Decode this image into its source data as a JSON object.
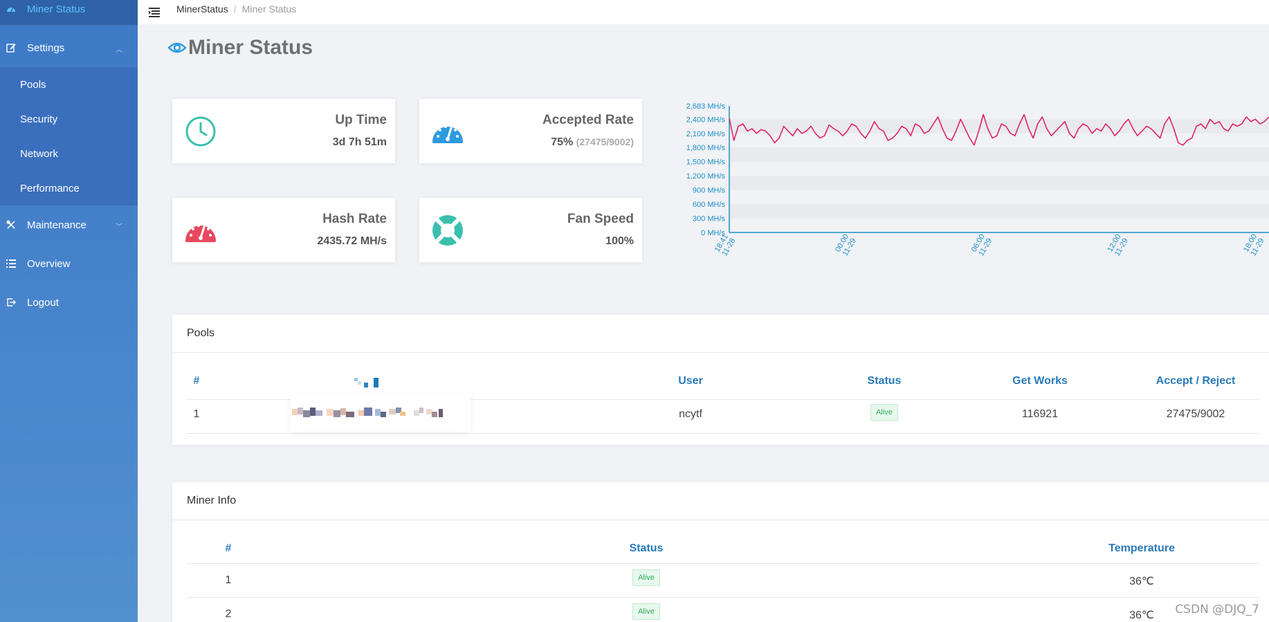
{
  "sidebar": {
    "items": [
      {
        "label": "Miner Status",
        "icon": "dashboard-icon"
      },
      {
        "label": "Settings",
        "icon": "edit-icon"
      },
      {
        "label": "Maintenance",
        "icon": "tools-icon"
      },
      {
        "label": "Overview",
        "icon": "list-icon"
      },
      {
        "label": "Logout",
        "icon": "logout-icon"
      }
    ],
    "settings_sub": [
      "Pools",
      "Security",
      "Network",
      "Performance"
    ]
  },
  "header": {
    "breadcrumb": [
      "MinerStatus",
      "Miner Status"
    ],
    "separator": "/"
  },
  "page": {
    "title": "Miner Status"
  },
  "stats": {
    "uptime": {
      "label": "Up Time",
      "value": "3d 7h 51m"
    },
    "accepted": {
      "label": "Accepted Rate",
      "value": "75%",
      "detail": "(27475/9002)"
    },
    "hashrate": {
      "label": "Hash Rate",
      "value": "2435.72 MH/s"
    },
    "fan": {
      "label": "Fan Speed",
      "value": "100%"
    }
  },
  "chart_data": {
    "type": "line",
    "title": "",
    "xlabel": "",
    "ylabel": "",
    "yticks": [
      "2,683 MH/s",
      "2,400 MH/s",
      "2,100 MH/s",
      "1,800 MH/s",
      "1,500 MH/s",
      "1,200 MH/s",
      "900 MH/s",
      "600 MH/s",
      "300 MH/s",
      "0 MH/s"
    ],
    "ytick_values": [
      2683,
      2400,
      2100,
      1800,
      1500,
      1200,
      900,
      600,
      300,
      0
    ],
    "ylim": [
      0,
      2683
    ],
    "xticks": [
      {
        "time": "18:41",
        "date": "11-28"
      },
      {
        "time": "00:00",
        "date": "11-29"
      },
      {
        "time": "06:00",
        "date": "11-29"
      },
      {
        "time": "12:00",
        "date": "11-29"
      },
      {
        "time": "18:00",
        "date": "11-29"
      }
    ],
    "xtick_hours": [
      0,
      5.32,
      11.32,
      17.32,
      23.32
    ],
    "xlim_hours": [
      0,
      23.8
    ],
    "grid": true,
    "series": [
      {
        "color": "#e0245e",
        "x_hours": [
          0,
          0.2,
          0.4,
          0.6,
          0.8,
          1.0,
          1.2,
          1.4,
          1.6,
          1.8,
          2.0,
          2.2,
          2.4,
          2.6,
          2.8,
          3.0,
          3.2,
          3.4,
          3.6,
          3.8,
          4.0,
          4.2,
          4.4,
          4.6,
          4.8,
          5.0,
          5.2,
          5.4,
          5.6,
          5.8,
          6.0,
          6.2,
          6.4,
          6.6,
          6.8,
          7.0,
          7.2,
          7.4,
          7.6,
          7.8,
          8.0,
          8.2,
          8.4,
          8.6,
          8.8,
          9.0,
          9.2,
          9.4,
          9.6,
          9.8,
          10.0,
          10.2,
          10.4,
          10.6,
          10.8,
          11.0,
          11.2,
          11.4,
          11.6,
          11.8,
          12.0,
          12.2,
          12.4,
          12.6,
          12.8,
          13.0,
          13.2,
          13.4,
          13.6,
          13.8,
          14.0,
          14.2,
          14.4,
          14.6,
          14.8,
          15.0,
          15.2,
          15.4,
          15.6,
          15.8,
          16.0,
          16.2,
          16.4,
          16.6,
          16.8,
          17.0,
          17.2,
          17.4,
          17.6,
          17.8,
          18.0,
          18.2,
          18.4,
          18.6,
          18.8,
          19.0,
          19.2,
          19.4,
          19.6,
          19.8,
          20.0,
          20.2,
          20.4,
          20.6,
          20.8,
          21.0,
          21.2,
          21.4,
          21.6,
          21.8,
          22.0,
          22.2,
          22.4,
          22.6,
          22.8,
          23.0,
          23.2,
          23.4,
          23.6,
          23.8
        ],
        "values": [
          2420,
          1950,
          2250,
          2300,
          2150,
          2200,
          2100,
          2180,
          2150,
          2050,
          1900,
          2000,
          2250,
          2150,
          2050,
          2200,
          2100,
          2150,
          2250,
          2100,
          2000,
          2050,
          2280,
          2200,
          2150,
          2050,
          2150,
          2300,
          2250,
          2100,
          2000,
          2150,
          2350,
          2200,
          2150,
          1950,
          2000,
          2100,
          2250,
          2200,
          2050,
          2300,
          2250,
          2100,
          2150,
          2300,
          2450,
          2200,
          2000,
          1950,
          2150,
          2400,
          2200,
          2000,
          1850,
          2150,
          2500,
          2200,
          2000,
          2050,
          2300,
          2250,
          2100,
          2050,
          2300,
          2500,
          2200,
          2000,
          2300,
          2450,
          2200,
          2050,
          2150,
          2250,
          2350,
          2100,
          2000,
          2200,
          2300,
          2250,
          2100,
          2200,
          2150,
          2300,
          2200,
          2050,
          2150,
          2300,
          2400,
          2200,
          2050,
          2150,
          2250,
          2200,
          2100,
          2000,
          2300,
          2450,
          2200,
          1900,
          1850,
          1950,
          2000,
          2250,
          2300,
          2200,
          2400,
          2300,
          2350,
          2200,
          2150,
          2300,
          2250,
          2300,
          2450,
          2350,
          2400,
          2300,
          2350,
          2450
        ]
      }
    ]
  },
  "pools": {
    "title": "Pools",
    "headers": [
      "#",
      "",
      "User",
      "Status",
      "Get Works",
      "Accept / Reject"
    ],
    "rows": [
      {
        "index": "1",
        "user": "ncytf",
        "status": "Alive",
        "get_works": "116921",
        "accept_reject": "27475/9002"
      }
    ]
  },
  "miner_info": {
    "title": "Miner Info",
    "headers": [
      "#",
      "Status",
      "Temperature"
    ],
    "rows": [
      {
        "index": "1",
        "status": "Alive",
        "temperature": "36℃"
      },
      {
        "index": "2",
        "status": "Alive",
        "temperature": "36℃"
      }
    ]
  },
  "watermark": "CSDN @DJQ_7",
  "colors": {
    "sidebar": "#4a86cc",
    "active_text": "#5cc2ff",
    "accent_teal": "#3cbfae",
    "accent_blue": "#2d9ae0",
    "accent_red": "#e8485e",
    "chart_line": "#e0245e",
    "axis": "#1d8fc7"
  }
}
